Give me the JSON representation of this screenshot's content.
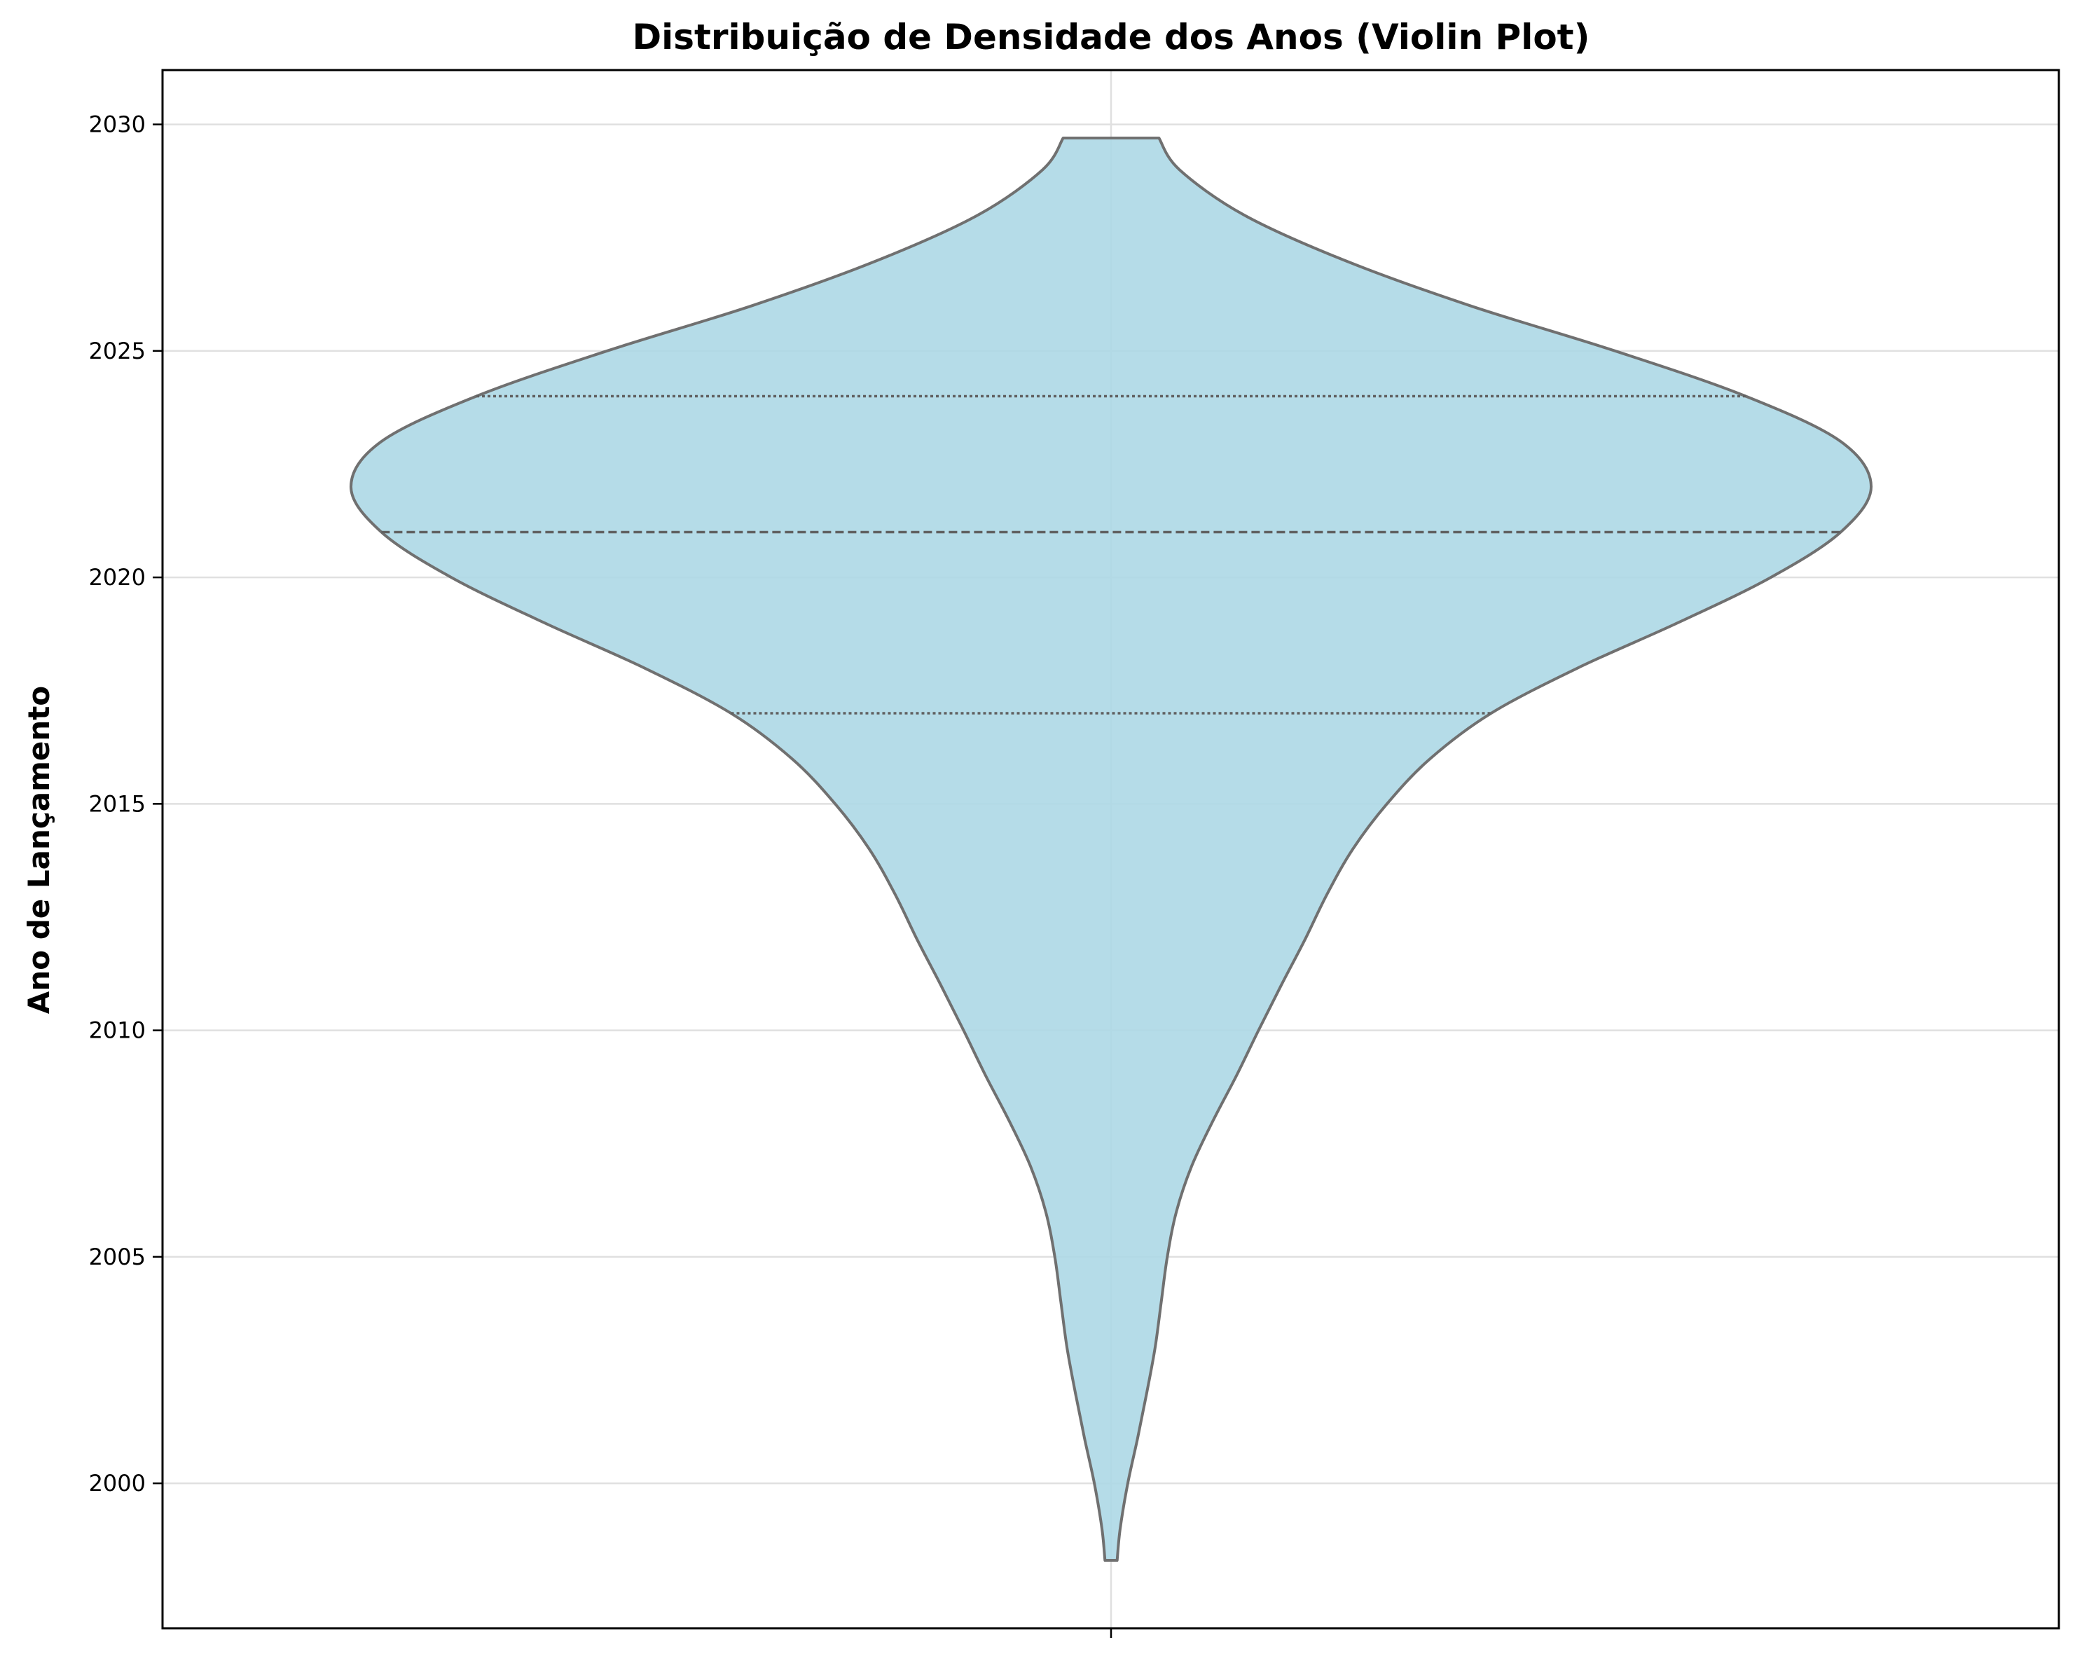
{
  "chart_data": {
    "type": "violin",
    "title": "Distribuição de Densidade dos Anos (Violin Plot)",
    "xlabel": "",
    "ylabel": "Ano de Lançamento",
    "ylim": [
      1996.8,
      2031.2
    ],
    "yticks": [
      2000,
      2005,
      2010,
      2015,
      2020,
      2025,
      2030
    ],
    "grid": true,
    "colors": {
      "fill": "#add8e6",
      "outline": "#707070",
      "quartile_lines": "#606060",
      "grid": "#e0e0e0",
      "axes": "#000000"
    },
    "violin": {
      "min": 1998.3,
      "max": 2029.7,
      "q1": 2017,
      "median": 2021,
      "q3": 2024,
      "density_profile": [
        {
          "y": 1998.3,
          "w": 0.008
        },
        {
          "y": 1999.0,
          "w": 0.012
        },
        {
          "y": 2000.0,
          "w": 0.022
        },
        {
          "y": 2001.0,
          "w": 0.035
        },
        {
          "y": 2002.0,
          "w": 0.047
        },
        {
          "y": 2003.0,
          "w": 0.058
        },
        {
          "y": 2004.0,
          "w": 0.066
        },
        {
          "y": 2005.0,
          "w": 0.074
        },
        {
          "y": 2006.0,
          "w": 0.086
        },
        {
          "y": 2007.0,
          "w": 0.106
        },
        {
          "y": 2008.0,
          "w": 0.134
        },
        {
          "y": 2009.0,
          "w": 0.165
        },
        {
          "y": 2010.0,
          "w": 0.194
        },
        {
          "y": 2011.0,
          "w": 0.224
        },
        {
          "y": 2012.0,
          "w": 0.255
        },
        {
          "y": 2013.0,
          "w": 0.284
        },
        {
          "y": 2014.0,
          "w": 0.318
        },
        {
          "y": 2015.0,
          "w": 0.363
        },
        {
          "y": 2016.0,
          "w": 0.42
        },
        {
          "y": 2017.0,
          "w": 0.5
        },
        {
          "y": 2018.0,
          "w": 0.614
        },
        {
          "y": 2019.0,
          "w": 0.746
        },
        {
          "y": 2020.0,
          "w": 0.868
        },
        {
          "y": 2021.0,
          "w": 0.96
        },
        {
          "y": 2022.0,
          "w": 1.0
        },
        {
          "y": 2023.0,
          "w": 0.96
        },
        {
          "y": 2024.0,
          "w": 0.835
        },
        {
          "y": 2025.0,
          "w": 0.663
        },
        {
          "y": 2026.0,
          "w": 0.472
        },
        {
          "y": 2027.0,
          "w": 0.307
        },
        {
          "y": 2028.0,
          "w": 0.175
        },
        {
          "y": 2029.0,
          "w": 0.09
        },
        {
          "y": 2029.7,
          "w": 0.063
        }
      ]
    }
  }
}
